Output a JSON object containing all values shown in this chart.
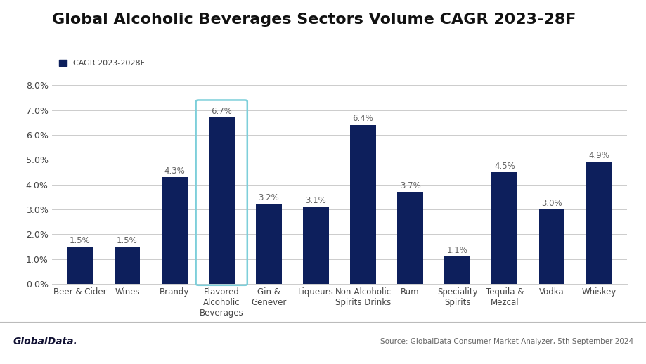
{
  "title": "Global Alcoholic Beverages Sectors Volume CAGR 2023-28F",
  "legend_label": "CAGR 2023-2028F",
  "categories": [
    "Beer & Cider",
    "Wines",
    "Brandy",
    "Flavored\nAlcoholic\nBeverages",
    "Gin &\nGenever",
    "Liqueurs",
    "Non-Alcoholic\nSpirits Drinks",
    "Rum",
    "Speciality\nSpirits",
    "Tequila &\nMezcal",
    "Vodka",
    "Whiskey"
  ],
  "values": [
    1.5,
    1.5,
    4.3,
    6.7,
    3.2,
    3.1,
    6.4,
    3.7,
    1.1,
    4.5,
    3.0,
    4.9
  ],
  "bar_color": "#0d1f5c",
  "highlight_index": 3,
  "highlight_box_color": "#7dcfda",
  "ylim": [
    0,
    8.5
  ],
  "yticks": [
    0.0,
    1.0,
    2.0,
    3.0,
    4.0,
    5.0,
    6.0,
    7.0,
    8.0
  ],
  "background_color": "#ffffff",
  "grid_color": "#cccccc",
  "source_text": "Source: GlobalData Consumer Market Analyzer, 5th September 2024",
  "logo_text": "GlobalData.",
  "title_fontsize": 16,
  "label_fontsize": 8.5,
  "tick_fontsize": 9,
  "legend_fontsize": 8,
  "bar_label_fontsize": 8.5,
  "bar_label_color": "#666666"
}
